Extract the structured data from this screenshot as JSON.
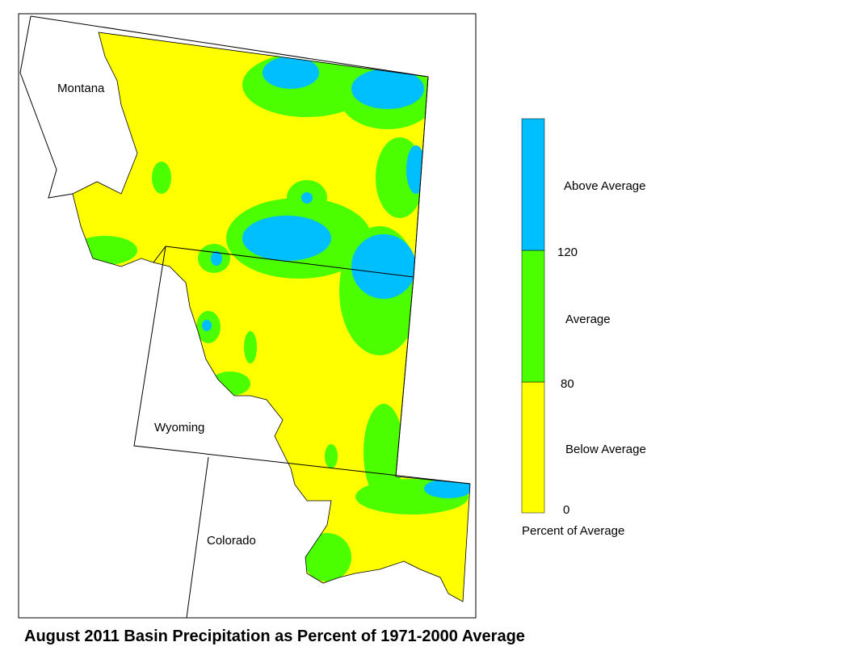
{
  "map": {
    "labels": [
      "Montana",
      "Wyoming",
      "Colorado"
    ]
  },
  "legend": {
    "title": "Percent of Average",
    "classes": [
      {
        "label": "Below Average",
        "color": "#ffff00"
      },
      {
        "label": "Average",
        "color": "#4cff00"
      },
      {
        "label": "Above Average",
        "color": "#00bfff"
      }
    ],
    "ticks": [
      0,
      80,
      120
    ]
  },
  "caption": "August 2011 Basin Precipitation as Percent of 1971-2000 Average"
}
